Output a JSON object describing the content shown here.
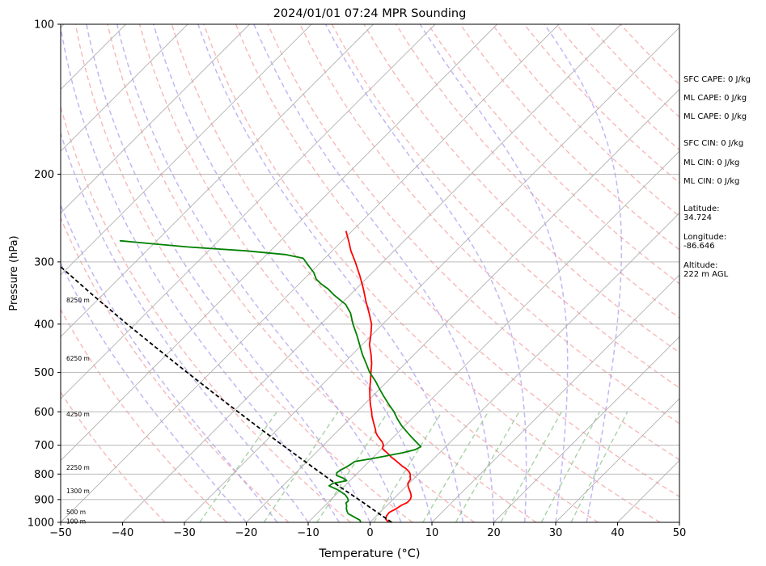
{
  "chart_data": {
    "type": "line",
    "title": "2024/01/01 07:24 MPR Sounding",
    "xlabel": "Temperature (°C)",
    "ylabel": "Pressure (hPa)",
    "xlim": [
      -50,
      50
    ],
    "ylim": [
      1000,
      100
    ],
    "y_scale": "log",
    "x_ticks": [
      "−50",
      "−40",
      "−30",
      "−20",
      "−10",
      "0",
      "10",
      "20",
      "30",
      "40",
      "50"
    ],
    "x_tick_values": [
      -50,
      -40,
      -30,
      -20,
      -10,
      0,
      10,
      20,
      30,
      40,
      50
    ],
    "y_ticks": [
      "1000",
      "900",
      "800",
      "700",
      "600",
      "500",
      "400",
      "300",
      "200",
      "100"
    ],
    "y_tick_values": [
      1000,
      900,
      800,
      700,
      600,
      500,
      400,
      300,
      200,
      100
    ],
    "grid": true,
    "skew_t": true,
    "height_labels": [
      {
        "text": "100 m",
        "p": 995
      },
      {
        "text": "500 m",
        "p": 952
      },
      {
        "text": "1300 m",
        "p": 865
      },
      {
        "text": "2250 m",
        "p": 776
      },
      {
        "text": "4250 m",
        "p": 606
      },
      {
        "text": "6250 m",
        "p": 468
      },
      {
        "text": "8250 m",
        "p": 358
      }
    ],
    "series": [
      {
        "role": "temperature",
        "color": "#ff0000",
        "p": [
          1000,
          985,
          970,
          955,
          940,
          925,
          912,
          900,
          888,
          875,
          862,
          850,
          835,
          820,
          810,
          800,
          790,
          780,
          770,
          760,
          750,
          740,
          730,
          720,
          710,
          700,
          690,
          680,
          670,
          660,
          650,
          640,
          630,
          620,
          610,
          600,
          580,
          560,
          540,
          520,
          500,
          480,
          460,
          440,
          420,
          400,
          380,
          360,
          340,
          320,
          300,
          285,
          272,
          260
        ],
        "t": [
          3.0,
          2.0,
          1.6,
          1.5,
          2.0,
          2.3,
          2.8,
          2.8,
          2.5,
          1.9,
          1.2,
          0.5,
          -0.2,
          -0.4,
          -0.9,
          -1.3,
          -2.0,
          -2.9,
          -4.0,
          -5.0,
          -6.0,
          -7.1,
          -8.0,
          -9.0,
          -10.0,
          -10.3,
          -11.0,
          -11.9,
          -12.8,
          -13.6,
          -14.2,
          -14.9,
          -15.6,
          -16.3,
          -17.0,
          -17.6,
          -19.0,
          -20.3,
          -21.6,
          -22.8,
          -24.1,
          -25.4,
          -27.0,
          -28.8,
          -30.2,
          -31.8,
          -34.0,
          -36.4,
          -38.8,
          -41.5,
          -44.5,
          -47.0,
          -49.0,
          -51.0
        ]
      },
      {
        "role": "dewpoint",
        "color": "#008000",
        "p": [
          1000,
          990,
          975,
          960,
          950,
          940,
          925,
          915,
          905,
          895,
          880,
          860,
          845,
          835,
          825,
          815,
          805,
          795,
          785,
          775,
          765,
          755,
          745,
          735,
          725,
          715,
          705,
          695,
          685,
          675,
          660,
          640,
          620,
          600,
          580,
          560,
          540,
          520,
          500,
          480,
          460,
          440,
          420,
          400,
          380,
          365,
          350,
          340,
          332,
          325,
          315,
          305,
          295,
          290,
          285,
          280,
          276,
          272
        ],
        "t": [
          -1.5,
          -2.0,
          -3.5,
          -5.0,
          -5.5,
          -6.0,
          -6.5,
          -7.0,
          -7.0,
          -7.5,
          -8.5,
          -10.5,
          -12.5,
          -12.3,
          -10.5,
          -11.5,
          -13.0,
          -13.4,
          -13.2,
          -12.8,
          -12.5,
          -12.3,
          -10.0,
          -8.0,
          -6.0,
          -4.5,
          -4.0,
          -5.0,
          -6.0,
          -7.0,
          -8.5,
          -10.5,
          -12.3,
          -14.0,
          -16.0,
          -18.0,
          -20.0,
          -22.0,
          -24.3,
          -26.3,
          -28.4,
          -30.4,
          -32.5,
          -34.8,
          -37.0,
          -39.2,
          -42.5,
          -44.5,
          -46.5,
          -48.0,
          -49.5,
          -51.5,
          -53.5,
          -57.0,
          -64.0,
          -74.0,
          -80.0,
          -86.0
        ]
      },
      {
        "role": "parcel",
        "color": "#000000",
        "p": [
          1000,
          950,
          900,
          850,
          800,
          750,
          700,
          650,
          600,
          550,
          500,
          450,
          400,
          350,
          300,
          270
        ],
        "t": [
          3.5,
          -0.9,
          -5.5,
          -10.5,
          -15.5,
          -20.9,
          -26.6,
          -32.7,
          -39.2,
          -46.2,
          -53.8,
          -62.1,
          -71.3,
          -81.5,
          -93.0,
          -101.0
        ]
      }
    ],
    "ref_lines": {
      "dry_adiabats_theta_k": [
        240,
        250,
        260,
        270,
        280,
        290,
        300,
        310,
        320,
        330,
        340,
        350,
        360,
        370,
        380,
        390,
        400,
        410,
        420,
        430,
        440,
        450
      ],
      "moist_adiabats_thetaw_c": [
        -20,
        -15,
        -10,
        -5,
        0,
        5,
        10,
        15,
        20,
        25,
        30,
        35
      ],
      "mixing_ratios_gkg": [
        0.4,
        1,
        2,
        4,
        7,
        10,
        16,
        24,
        32
      ]
    },
    "colors": {
      "temperature": "#ff0000",
      "dewpoint": "#008000",
      "parcel": "#000000",
      "dry_adiabat": "#f4a0a0",
      "moist_adiabat": "#a898ee",
      "mixing_ratio": "#90c890",
      "grid": "#b0b0b0"
    }
  },
  "stats": [
    {
      "text": "SFC CAPE: 0 J/kg"
    },
    {
      "text": "ML CAPE: 0 J/kg"
    },
    {
      "text": "ML CAPE: 0 J/kg"
    },
    {
      "text": "SFC CIN: 0 J/kg"
    },
    {
      "text": "ML CIN: 0 J/kg"
    },
    {
      "text": "ML CIN: 0 J/kg"
    },
    {
      "text": "Latitude:\n34.724"
    },
    {
      "text": "Longitude:\n-86.646"
    },
    {
      "text": "Altitude:\n222 m AGL"
    }
  ]
}
